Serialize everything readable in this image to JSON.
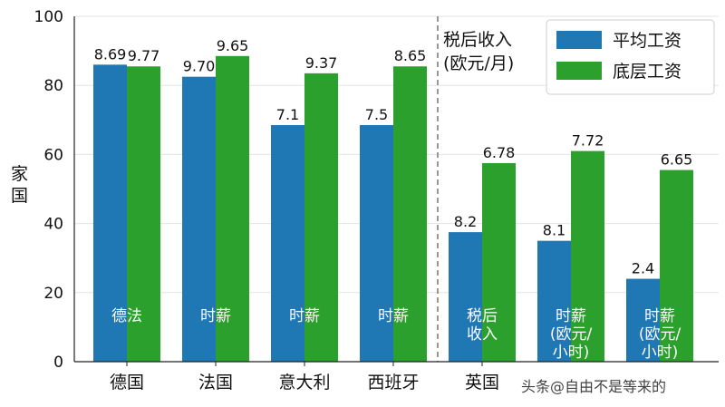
{
  "chart_data": {
    "type": "bar",
    "categories": [
      "德国",
      "法国",
      "意大利",
      "西班牙",
      "英国",
      "",
      ""
    ],
    "series": [
      {
        "name": "平均工资",
        "color": "#1f77b4",
        "values": [
          86,
          82.5,
          68.5,
          68.5,
          37.5,
          35,
          24
        ],
        "labels": [
          "8.69",
          "9.70",
          "7.1",
          "7.5",
          "8.2",
          "8.1",
          "2.4"
        ]
      },
      {
        "name": "底层工资",
        "color": "#2ca02c",
        "values": [
          85.5,
          88.5,
          83.5,
          85.5,
          57.5,
          61,
          55.5
        ],
        "labels": [
          "9.77",
          "9.65",
          "9.37",
          "8.65",
          "6.78",
          "7.72",
          "6.65"
        ]
      }
    ],
    "in_bar_labels": [
      [
        "德法"
      ],
      [
        "时薪"
      ],
      [
        "时薪"
      ],
      [
        "时薪"
      ],
      [
        "税后",
        "收入"
      ],
      [
        "时薪",
        "(欧元/",
        "小时)"
      ],
      [
        "时薪",
        "(欧元/",
        "小时)"
      ]
    ],
    "ylabel": "家国",
    "ylim": [
      0,
      100
    ],
    "yticks": [
      "0",
      "20",
      "40",
      "60",
      "80",
      "100"
    ],
    "annotation": [
      "税后收入",
      "(欧元/月)"
    ],
    "legend_position": "top-right",
    "divider_after_category": 3
  },
  "watermark": "头条@自由不是等来的"
}
